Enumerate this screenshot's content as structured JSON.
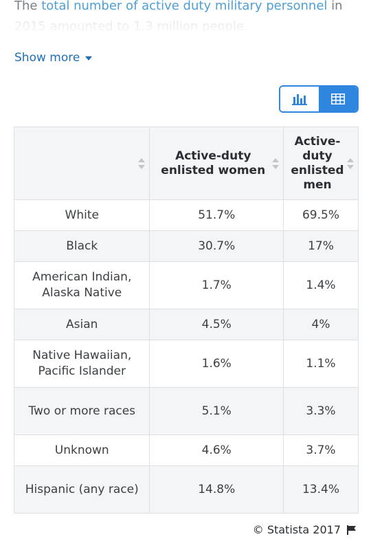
{
  "intro": {
    "prefix": "The ",
    "link": "total number of active duty military personnel",
    "suffix": " in",
    "faded_line": "2015 amounted to 1.3 million people."
  },
  "show_more": {
    "label": "Show more",
    "icon": "caret-down-icon"
  },
  "view_toggle": {
    "chart_icon": "bar-chart-icon",
    "table_icon": "table-grid-icon",
    "active": "table",
    "accent_color": "#2e86de"
  },
  "table": {
    "headers": [
      "",
      "Active-duty enlisted women",
      "Active-duty enlisted men"
    ],
    "rows": [
      {
        "label": "White",
        "women": "51.7%",
        "men": "69.5%"
      },
      {
        "label": "Black",
        "women": "30.7%",
        "men": "17%"
      },
      {
        "label": "American Indian, Alaska Native",
        "women": "1.7%",
        "men": "1.4%"
      },
      {
        "label": "Asian",
        "women": "4.5%",
        "men": "4%"
      },
      {
        "label": "Native Hawaiian, Pacific Islander",
        "women": "1.6%",
        "men": "1.1%"
      },
      {
        "label": "Two or more races",
        "women": "5.1%",
        "men": "3.3%"
      },
      {
        "label": "Unknown",
        "women": "4.6%",
        "men": "3.7%"
      },
      {
        "label": "Hispanic (any race)",
        "women": "14.8%",
        "men": "13.4%"
      }
    ]
  },
  "footer": {
    "credit": "© Statista 2017",
    "flag_icon": "flag-icon"
  }
}
